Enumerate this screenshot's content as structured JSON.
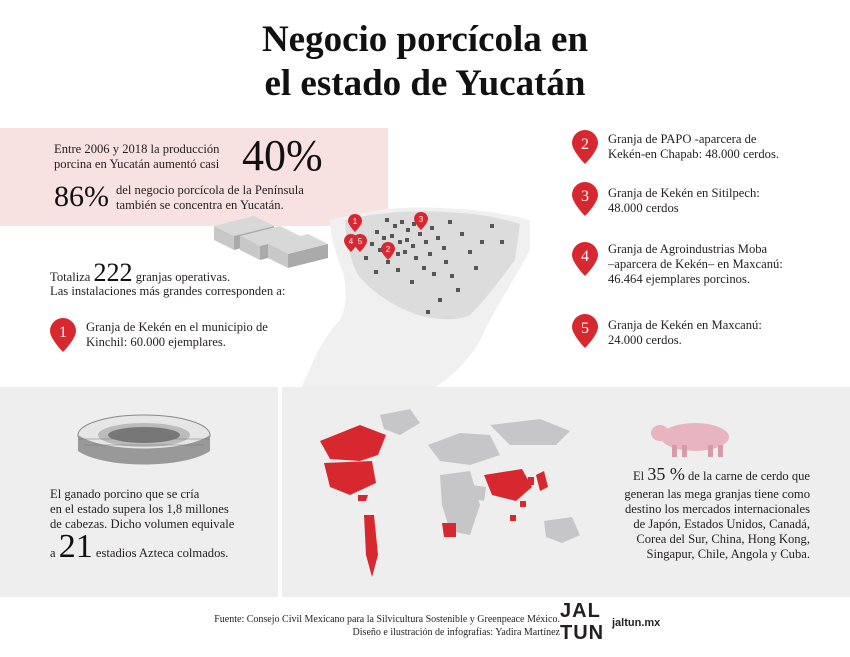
{
  "title": {
    "line1": "Negocio porcícola en",
    "line2": "el estado de Yucatán"
  },
  "production": {
    "text_line1": "Entre 2006 y 2018 la producción",
    "text_line2": "porcina en Yucatán aumentó casi",
    "percent": "40%"
  },
  "concentration": {
    "percent": "86%",
    "text_line1": "del negocio porcícola de la Península",
    "text_line2": "también se concentra en Yucatán."
  },
  "farms": {
    "prefix": "Totaliza",
    "count": "222",
    "suffix": "granjas operativas.",
    "line2": "Las instalaciones más grandes corresponden a:"
  },
  "facilities": [
    {
      "num": "1",
      "line1": "Granja de Kekén en el municipio de",
      "line2": "Kinchil: 60.000 ejemplares.",
      "line3": ""
    },
    {
      "num": "2",
      "line1": "Granja de PAPO -aparcera de",
      "line2": "Kekén-en Chapab: 48.000 cerdos.",
      "line3": ""
    },
    {
      "num": "3",
      "line1": "Granja de Kekén en Sitilpech:",
      "line2": "48.000 cerdos",
      "line3": ""
    },
    {
      "num": "4",
      "line1": "Granja de Agroindustrias Moba",
      "line2": "–aparcera de Kekén– en Maxcanú:",
      "line3": "46.464 ejemplares porcinos."
    },
    {
      "num": "5",
      "line1": "Granja de Kekén en Maxcanú:",
      "line2": "24.000 cerdos.",
      "line3": ""
    }
  ],
  "map_pins": [
    "1",
    "2",
    "3",
    "4",
    "5"
  ],
  "cattle": {
    "line1": "El ganado porcino que se cría",
    "line2": "en el estado supera los 1,8 millones",
    "line3": "de cabezas. Dicho volumen equivale",
    "prefix": "a",
    "number": "21",
    "suffix": "estadios Azteca colmados."
  },
  "export": {
    "prefix": "El",
    "percent": "35 %",
    "line1": "de la carne de cerdo que",
    "line2": "generan las mega granjas tiene como",
    "line3": "destino los mercados internacionales",
    "line4": "de Japón, Estados Unidos, Canadá,",
    "line5": "Corea del Sur, China, Hong Kong,",
    "line6": "Singapur, Chile, Angola y Cuba."
  },
  "footer": {
    "source": "Fuente: Consejo Civil Mexicano para la Silvicultura Sostenible y Greenpeace México.",
    "credit": "Diseño e ilustración de infografías: Yadira Martínez",
    "logo_top": "JAL",
    "logo_bottom": "TUN",
    "site": "jaltun.mx"
  },
  "colors": {
    "accent": "#d7282f",
    "pink": "#f8e1e1",
    "gray": "#eeeeef",
    "map_gray": "#c6c6c8",
    "pig": "#e8b4c0"
  }
}
